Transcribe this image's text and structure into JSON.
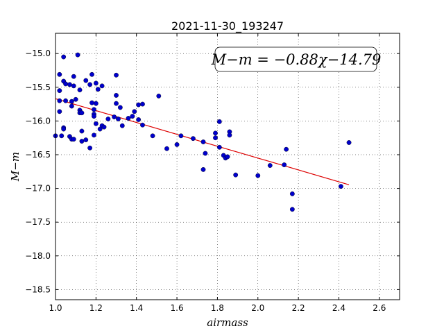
{
  "chart_data": {
    "type": "scatter",
    "title": "2021-11-30_193247",
    "xlabel": "airmass",
    "ylabel": "M−m",
    "xlim": [
      1.0,
      2.7
    ],
    "ylim": [
      -18.65,
      -14.7
    ],
    "y_inverted": true,
    "grid": true,
    "grid_style": "dotted",
    "x_ticks": [
      1.0,
      1.2,
      1.4,
      1.6,
      1.8,
      2.0,
      2.2,
      2.4,
      2.6
    ],
    "x_tick_labels": [
      "1.0",
      "1.2",
      "1.4",
      "1.6",
      "1.8",
      "2.0",
      "2.2",
      "2.4",
      "2.6"
    ],
    "y_ticks": [
      -15.0,
      -15.5,
      -16.0,
      -16.5,
      -17.0,
      -17.5,
      -18.0,
      -18.5
    ],
    "y_tick_labels": [
      "−15.0",
      "−15.5",
      "−16.0",
      "−16.5",
      "−17.0",
      "−17.5",
      "−18.0",
      "−18.5"
    ],
    "annotation": "M−m = −0.88χ−14.79",
    "annotation_position": "top-right",
    "fit": {
      "slope": -0.88,
      "intercept": -14.79,
      "x_range": [
        1.0,
        2.45
      ],
      "color": "#dd0000"
    },
    "point_color": "#0000cc",
    "points": [
      [
        1.0,
        -16.22
      ],
      [
        1.02,
        -15.86
      ],
      [
        1.02,
        -15.7
      ],
      [
        1.02,
        -15.55
      ],
      [
        1.02,
        -15.31
      ],
      [
        1.03,
        -16.22
      ],
      [
        1.04,
        -15.05
      ],
      [
        1.04,
        -16.1
      ],
      [
        1.04,
        -16.12
      ],
      [
        1.04,
        -15.41
      ],
      [
        1.05,
        -15.45
      ],
      [
        1.05,
        -15.7
      ],
      [
        1.07,
        -16.23
      ],
      [
        1.07,
        -15.46
      ],
      [
        1.08,
        -15.78
      ],
      [
        1.08,
        -16.27
      ],
      [
        1.08,
        -15.71
      ],
      [
        1.09,
        -16.27
      ],
      [
        1.09,
        -15.48
      ],
      [
        1.09,
        -15.34
      ],
      [
        1.1,
        -15.68
      ],
      [
        1.11,
        -15.02
      ],
      [
        1.12,
        -15.84
      ],
      [
        1.12,
        -15.88
      ],
      [
        1.12,
        -15.54
      ],
      [
        1.13,
        -16.3
      ],
      [
        1.13,
        -16.15
      ],
      [
        1.13,
        -15.88
      ],
      [
        1.15,
        -16.28
      ],
      [
        1.15,
        -15.4
      ],
      [
        1.17,
        -16.4
      ],
      [
        1.17,
        -15.46
      ],
      [
        1.18,
        -15.31
      ],
      [
        1.18,
        -15.73
      ],
      [
        1.19,
        -15.9
      ],
      [
        1.19,
        -16.21
      ],
      [
        1.19,
        -15.93
      ],
      [
        1.19,
        -15.83
      ],
      [
        1.2,
        -15.44
      ],
      [
        1.2,
        -15.74
      ],
      [
        1.2,
        -16.04
      ],
      [
        1.21,
        -15.53
      ],
      [
        1.22,
        -16.12
      ],
      [
        1.23,
        -16.07
      ],
      [
        1.23,
        -15.48
      ],
      [
        1.24,
        -16.09
      ],
      [
        1.26,
        -15.97
      ],
      [
        1.29,
        -15.94
      ],
      [
        1.3,
        -15.62
      ],
      [
        1.3,
        -15.74
      ],
      [
        1.3,
        -15.32
      ],
      [
        1.31,
        -15.97
      ],
      [
        1.32,
        -15.8
      ],
      [
        1.33,
        -16.07
      ],
      [
        1.36,
        -15.96
      ],
      [
        1.38,
        -15.93
      ],
      [
        1.39,
        -15.86
      ],
      [
        1.41,
        -15.98
      ],
      [
        1.41,
        -15.76
      ],
      [
        1.43,
        -15.75
      ],
      [
        1.43,
        -16.06
      ],
      [
        1.48,
        -16.22
      ],
      [
        1.51,
        -15.63
      ],
      [
        1.55,
        -16.41
      ],
      [
        1.6,
        -16.35
      ],
      [
        1.62,
        -16.22
      ],
      [
        1.68,
        -16.26
      ],
      [
        1.73,
        -16.72
      ],
      [
        1.73,
        -16.31
      ],
      [
        1.74,
        -16.48
      ],
      [
        1.79,
        -16.25
      ],
      [
        1.79,
        -16.18
      ],
      [
        1.81,
        -16.39
      ],
      [
        1.81,
        -16.01
      ],
      [
        1.83,
        -16.51
      ],
      [
        1.84,
        -16.55
      ],
      [
        1.85,
        -16.53
      ],
      [
        1.86,
        -16.16
      ],
      [
        1.86,
        -16.21
      ],
      [
        1.89,
        -16.8
      ],
      [
        2.0,
        -16.81
      ],
      [
        2.06,
        -16.66
      ],
      [
        2.13,
        -16.65
      ],
      [
        2.14,
        -16.42
      ],
      [
        2.17,
        -17.08
      ],
      [
        2.17,
        -17.31
      ],
      [
        2.41,
        -16.97
      ],
      [
        2.45,
        -16.32
      ]
    ]
  }
}
